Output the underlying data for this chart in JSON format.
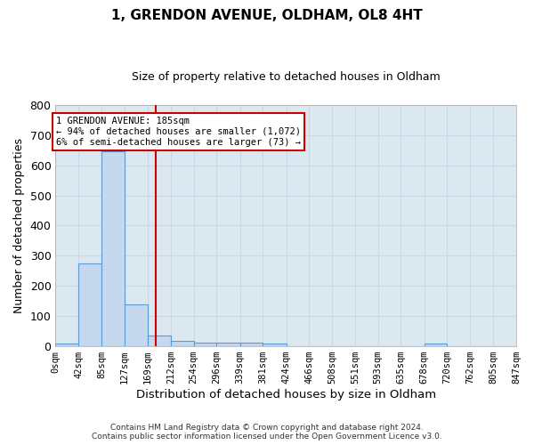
{
  "title": "1, GRENDON AVENUE, OLDHAM, OL8 4HT",
  "subtitle": "Size of property relative to detached houses in Oldham",
  "xlabel": "Distribution of detached houses by size in Oldham",
  "ylabel": "Number of detached properties",
  "bin_edges": [
    0,
    42,
    85,
    127,
    169,
    212,
    254,
    296,
    339,
    381,
    424,
    466,
    508,
    551,
    593,
    635,
    678,
    720,
    762,
    805,
    847
  ],
  "bar_heights": [
    10,
    275,
    645,
    140,
    37,
    18,
    12,
    11,
    11,
    10,
    0,
    0,
    0,
    0,
    0,
    0,
    8,
    0,
    0,
    0
  ],
  "bar_color": "#c5d8ee",
  "bar_edgecolor": "#5b9bd5",
  "vline_x": 185,
  "vline_color": "#cc0000",
  "ylim": [
    0,
    800
  ],
  "yticks": [
    0,
    100,
    200,
    300,
    400,
    500,
    600,
    700,
    800
  ],
  "xtick_labels": [
    "0sqm",
    "42sqm",
    "85sqm",
    "127sqm",
    "169sqm",
    "212sqm",
    "254sqm",
    "296sqm",
    "339sqm",
    "381sqm",
    "424sqm",
    "466sqm",
    "508sqm",
    "551sqm",
    "593sqm",
    "635sqm",
    "678sqm",
    "720sqm",
    "762sqm",
    "805sqm",
    "847sqm"
  ],
  "annotation_text": "1 GRENDON AVENUE: 185sqm\n← 94% of detached houses are smaller (1,072)\n6% of semi-detached houses are larger (73) →",
  "annotation_box_color": "#ffffff",
  "annotation_box_edgecolor": "#cc0000",
  "footer_line1": "Contains HM Land Registry data © Crown copyright and database right 2024.",
  "footer_line2": "Contains public sector information licensed under the Open Government Licence v3.0.",
  "grid_color": "#c8d8e8",
  "background_color": "#dce8f0"
}
